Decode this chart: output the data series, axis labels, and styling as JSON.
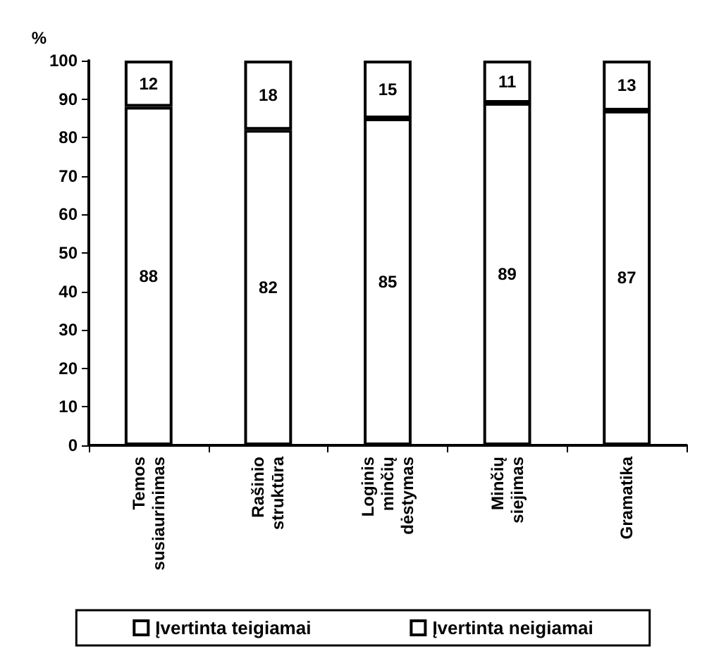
{
  "chart_data": {
    "type": "bar",
    "stacked": true,
    "ylabel": "%",
    "categories": [
      "Temos\nsusiaurinimas",
      "Rašinio\nstruktūra",
      "Loginis\nminčių\ndėstymas",
      "Minčių\nsiejimas",
      "Gramatika"
    ],
    "series": [
      {
        "name": "Įvertinta teigiamai",
        "color": "#ffffff",
        "values": [
          88,
          82,
          85,
          89,
          87
        ]
      },
      {
        "name": "Įvertinta neigiamai",
        "color": "#ffffff",
        "values": [
          12,
          18,
          15,
          11,
          13
        ]
      }
    ],
    "ylim": [
      0,
      100
    ],
    "yticks": [
      0,
      10,
      20,
      30,
      40,
      50,
      60,
      70,
      80,
      90,
      100
    ],
    "data_labels": true,
    "legend": "bottom",
    "grid": false
  }
}
